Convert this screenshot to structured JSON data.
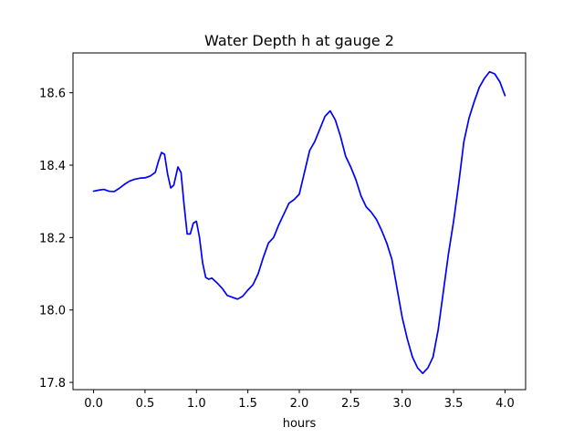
{
  "chart_data": {
    "type": "line",
    "title": "Water Depth h at gauge 2",
    "xlabel": "hours",
    "ylabel": "",
    "xlim": [
      -0.2,
      4.2
    ],
    "ylim": [
      17.78,
      18.71
    ],
    "xticks": [
      0.0,
      0.5,
      1.0,
      1.5,
      2.0,
      2.5,
      3.0,
      3.5,
      4.0
    ],
    "xtick_labels": [
      "0.0",
      "0.5",
      "1.0",
      "1.5",
      "2.0",
      "2.5",
      "3.0",
      "3.5",
      "4.0"
    ],
    "yticks": [
      17.8,
      18.0,
      18.2,
      18.4,
      18.6
    ],
    "ytick_labels": [
      "17.8",
      "18.0",
      "18.2",
      "18.4",
      "18.6"
    ],
    "grid": false,
    "legend": "none",
    "series": [
      {
        "color": "#0000ff",
        "x": [
          0.0,
          0.05,
          0.1,
          0.15,
          0.2,
          0.25,
          0.3,
          0.35,
          0.4,
          0.45,
          0.5,
          0.55,
          0.6,
          0.63,
          0.66,
          0.69,
          0.72,
          0.75,
          0.78,
          0.82,
          0.85,
          0.88,
          0.91,
          0.94,
          0.97,
          1.0,
          1.03,
          1.06,
          1.09,
          1.12,
          1.15,
          1.2,
          1.25,
          1.3,
          1.35,
          1.4,
          1.45,
          1.5,
          1.55,
          1.6,
          1.65,
          1.7,
          1.75,
          1.8,
          1.85,
          1.9,
          1.95,
          2.0,
          2.05,
          2.1,
          2.15,
          2.2,
          2.25,
          2.3,
          2.35,
          2.4,
          2.45,
          2.5,
          2.55,
          2.6,
          2.65,
          2.7,
          2.75,
          2.8,
          2.85,
          2.9,
          2.95,
          3.0,
          3.05,
          3.1,
          3.15,
          3.2,
          3.25,
          3.3,
          3.35,
          3.4,
          3.45,
          3.5,
          3.55,
          3.6,
          3.65,
          3.7,
          3.75,
          3.8,
          3.85,
          3.9,
          3.95,
          4.0
        ],
        "y": [
          18.328,
          18.331,
          18.333,
          18.328,
          18.327,
          18.336,
          18.347,
          18.356,
          18.361,
          18.364,
          18.365,
          18.37,
          18.38,
          18.41,
          18.435,
          18.43,
          18.375,
          18.337,
          18.345,
          18.395,
          18.38,
          18.29,
          18.21,
          18.21,
          18.24,
          18.245,
          18.2,
          18.13,
          18.09,
          18.085,
          18.088,
          18.075,
          18.06,
          18.04,
          18.035,
          18.03,
          18.038,
          18.055,
          18.07,
          18.1,
          18.145,
          18.185,
          18.2,
          18.235,
          18.265,
          18.295,
          18.305,
          18.32,
          18.38,
          18.44,
          18.465,
          18.5,
          18.535,
          18.55,
          18.525,
          18.48,
          18.425,
          18.395,
          18.36,
          18.315,
          18.285,
          18.27,
          18.25,
          18.22,
          18.185,
          18.14,
          18.06,
          17.98,
          17.92,
          17.87,
          17.84,
          17.825,
          17.84,
          17.87,
          17.945,
          18.05,
          18.155,
          18.245,
          18.35,
          18.465,
          18.53,
          18.575,
          18.615,
          18.64,
          18.658,
          18.652,
          18.63,
          18.592
        ]
      }
    ]
  }
}
